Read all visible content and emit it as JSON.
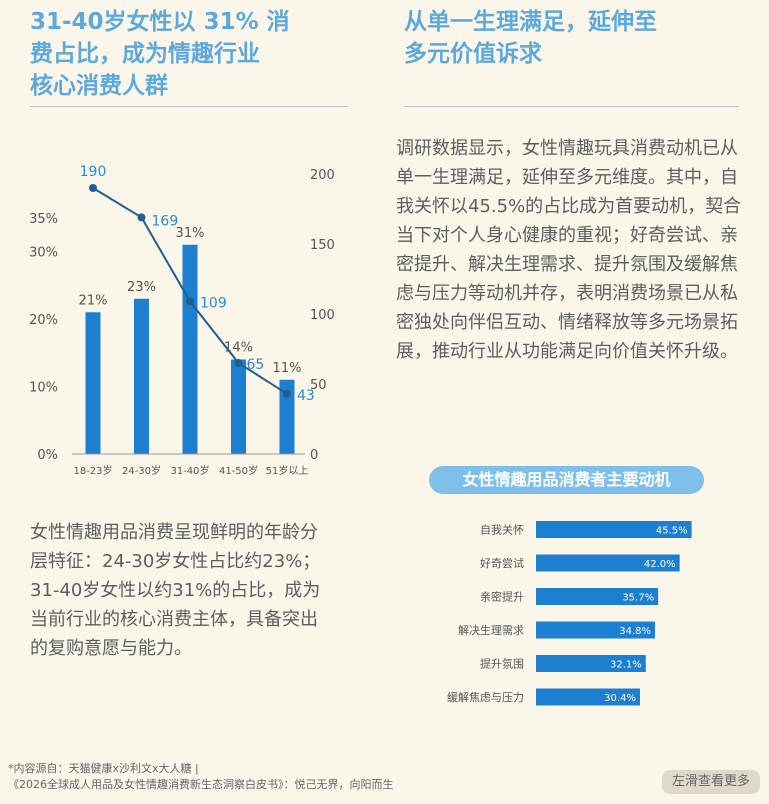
{
  "left": {
    "heading": [
      "31-40岁女性以 31% 消",
      "费占比，成为情趣行业",
      "核心消费人群"
    ],
    "paragraph": "女性情趣用品消费呈现鲜明的年龄分层特征：24-30岁女性占比约23%；31-40岁女性以约31%的占比，成为当前行业的核心消费主体，具备突出的复购意愿与能力。"
  },
  "right": {
    "heading": [
      "从单一生理满足，延伸至",
      "多元价值诉求"
    ],
    "paragraph": "调研数据显示，女性情趣玩具消费动机已从单一生理满足，延伸至多元维度。其中，自我关怀以45.5%的占比成为首要动机，契合当下对个人身心健康的重视；好奇尝试、亲密提升、解决生理需求、提升氛围及缓解焦虑与压力等动机并存，表明消费场景已从私密独处向伴侣互动、情绪释放等多元场景拓展，推动行业从功能满足向价值关怀升级。"
  },
  "chart_data": [
    {
      "type": "bar",
      "categories": [
        "18-23岁",
        "24-30岁",
        "31-40岁",
        "41-50岁",
        "51岁以上"
      ],
      "series": [
        {
          "values": [
            21,
            23,
            31,
            14,
            11
          ],
          "labels": [
            "21%",
            "23%",
            "31%",
            "14%",
            "11%"
          ],
          "axis": "left"
        },
        {
          "values": [
            190,
            169,
            109,
            65,
            43
          ],
          "labels": [
            "190",
            "169",
            "109",
            "65",
            "43"
          ],
          "axis": "right",
          "type": "line"
        }
      ],
      "left_axis": {
        "ticks": [
          "0%",
          "10%",
          "20%",
          "30%",
          "35%"
        ],
        "tick_values": [
          0,
          10,
          20,
          30,
          35
        ],
        "ylim": [
          0,
          40
        ]
      },
      "right_axis": {
        "ticks": [
          "0",
          "50",
          "100",
          "150",
          "200"
        ],
        "tick_values": [
          0,
          50,
          100,
          150,
          200
        ],
        "ylim": [
          0,
          205
        ]
      },
      "colors": {
        "bar": "#1d7fd0",
        "line": "#1f5f93",
        "line_label": "#2a8ad6"
      }
    },
    {
      "type": "bar",
      "orientation": "horizontal",
      "title": "女性情趣用品消费者主要动机",
      "categories": [
        "自我关怀",
        "好奇尝试",
        "亲密提升",
        "解决生理需求",
        "提升氛围",
        "缓解焦虑与压力"
      ],
      "values": [
        45.5,
        42.0,
        35.7,
        34.8,
        32.1,
        30.4
      ],
      "labels": [
        "45.5%",
        "42.0%",
        "35.7%",
        "34.8%",
        "32.1%",
        "30.4%"
      ],
      "xlim": [
        0,
        50
      ],
      "colors": {
        "bar": "#1d7fd0"
      }
    }
  ],
  "footer": {
    "line1": "*内容源自：天猫健康x沙利文x大人糖 |",
    "line2": "《2026全球成人用品及女性情趣消费新生态洞察白皮书》：悦己无界，向阳而生",
    "swipe_label": "左滑查看更多"
  }
}
